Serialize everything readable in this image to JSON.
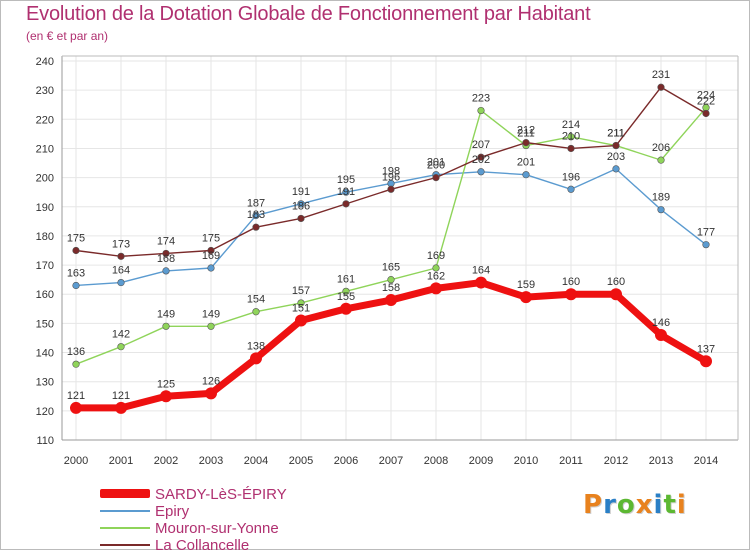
{
  "header": {
    "title": "Evolution de la Dotation Globale de Fonctionnement par Habitant",
    "subtitle": "(en € et par an)"
  },
  "logo": {
    "text": "Proxiti",
    "colors": [
      "#e8821e",
      "#2a7fc6",
      "#5cb832",
      "#e8821e",
      "#2a7fc6",
      "#5cb832",
      "#e8821e"
    ]
  },
  "chart_data": {
    "type": "line",
    "x": [
      "2000",
      "2001",
      "2002",
      "2003",
      "2004",
      "2005",
      "2006",
      "2007",
      "2008",
      "2009",
      "2010",
      "2011",
      "2012",
      "2013",
      "2014"
    ],
    "ylim": [
      110,
      240
    ],
    "yticks": [
      "110",
      "120",
      "130",
      "140",
      "150",
      "160",
      "170",
      "180",
      "190",
      "200",
      "210",
      "220",
      "230",
      "240"
    ],
    "grid": true,
    "legend_position": "bottom-left",
    "series": [
      {
        "name": "SARDY-LèS-ÉPIRY",
        "color": "#ee1111",
        "values": [
          121,
          121,
          125,
          126,
          138,
          151,
          155,
          158,
          162,
          164,
          159,
          160,
          160,
          146,
          137
        ]
      },
      {
        "name": "Epiry",
        "color": "#5b9bd0",
        "values": [
          163,
          164,
          168,
          169,
          187,
          191,
          195,
          198,
          201,
          202,
          201,
          196,
          203,
          189,
          177
        ]
      },
      {
        "name": "Mouron-sur-Yonne",
        "color": "#8fd45a",
        "values": [
          136,
          142,
          149,
          149,
          154,
          157,
          161,
          165,
          169,
          223,
          211,
          214,
          211,
          206,
          224
        ]
      },
      {
        "name": "La Collancelle",
        "color": "#7a2a2a",
        "values": [
          175,
          173,
          174,
          175,
          183,
          186,
          191,
          196,
          200,
          207,
          212,
          210,
          211,
          231,
          222
        ]
      }
    ]
  }
}
